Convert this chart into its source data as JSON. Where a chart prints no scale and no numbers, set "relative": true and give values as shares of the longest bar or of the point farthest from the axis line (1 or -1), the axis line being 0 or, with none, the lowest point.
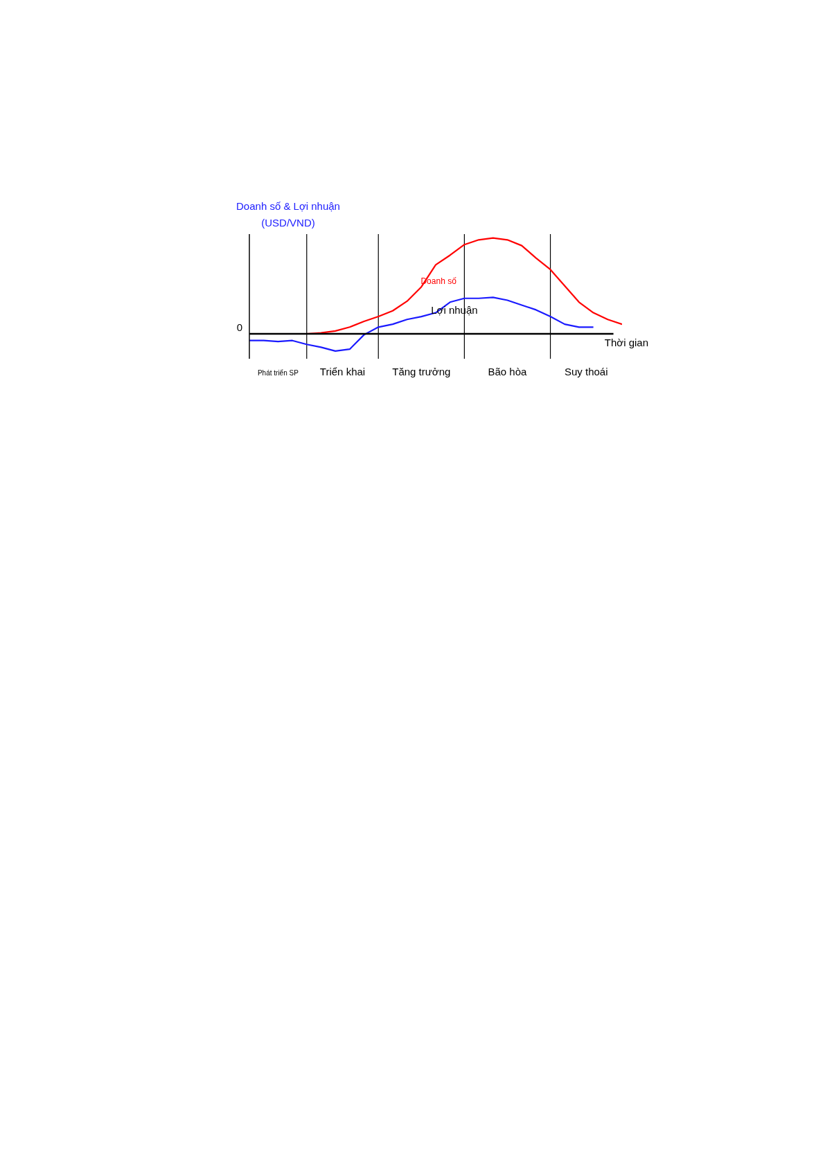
{
  "chart_data": {
    "type": "line",
    "relative": true,
    "ylabel": "Doanh số & Lợi nhuận (USD/VND)",
    "xlabel": "Thời gian",
    "categories": [
      null,
      null,
      null,
      null,
      null,
      null,
      null,
      null,
      null,
      null,
      null,
      null,
      null,
      null,
      null,
      null,
      null,
      null,
      null,
      null,
      null,
      null,
      null,
      null,
      null,
      null,
      null
    ],
    "series": [
      {
        "name": "Doanh số",
        "color": "#ff0000",
        "values": [
          null,
          null,
          null,
          null,
          0,
          0.01,
          0.03,
          0.07,
          0.13,
          0.18,
          0.24,
          0.34,
          0.49,
          0.72,
          0.82,
          0.93,
          0.98,
          1,
          0.98,
          0.92,
          0.79,
          0.67,
          0.5,
          0.33,
          0.22,
          0.15,
          0.1
        ]
      },
      {
        "name": "Lợi nhuận",
        "color": "#1a1aff",
        "values": [
          -0.07,
          -0.07,
          -0.08,
          -0.07,
          -0.11,
          -0.14,
          -0.18,
          -0.16,
          -0.01,
          0.07,
          0.1,
          0.15,
          0.18,
          0.22,
          0.33,
          0.37,
          0.37,
          0.38,
          0.35,
          0.3,
          0.25,
          0.18,
          0.1,
          0.07,
          0.07,
          null,
          null
        ]
      }
    ],
    "grid": "x",
    "annotations": [
      "0",
      "Phát triển SP",
      "Triển khai",
      "Tăng trưởng",
      "Bão hòa",
      "Suy thoái"
    ]
  }
}
